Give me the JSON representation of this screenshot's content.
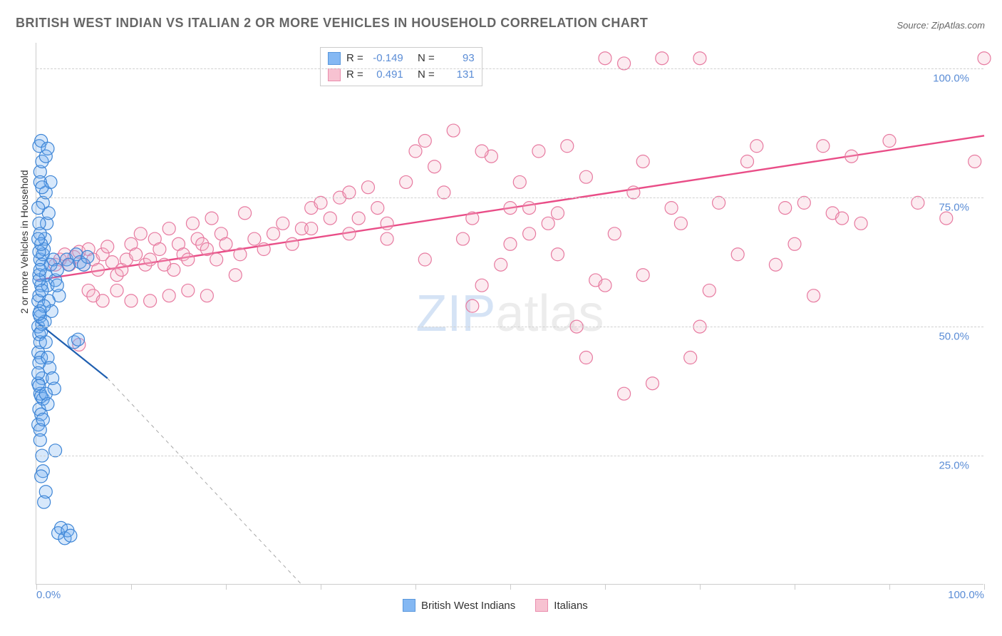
{
  "title": "BRITISH WEST INDIAN VS ITALIAN 2 OR MORE VEHICLES IN HOUSEHOLD CORRELATION CHART",
  "source": "Source: ZipAtlas.com",
  "watermark": {
    "part1": "ZIP",
    "part2": "atlas"
  },
  "y_axis_label": "2 or more Vehicles in Household",
  "chart": {
    "type": "scatter",
    "xlim": [
      0,
      100
    ],
    "ylim": [
      0,
      105
    ],
    "x_ticks": [
      0,
      10,
      20,
      30,
      40,
      50,
      60,
      70,
      80,
      90,
      100
    ],
    "x_tick_labels": {
      "0": "0.0%",
      "100": "100.0%"
    },
    "y_gridlines": [
      25,
      50,
      75,
      100
    ],
    "y_tick_labels": {
      "25": "25.0%",
      "50": "50.0%",
      "75": "75.0%",
      "100": "100.0%"
    },
    "background_color": "#ffffff",
    "grid_color": "#d0d0d0",
    "axis_color": "#cccccc",
    "tick_label_color": "#5b8dd6",
    "marker_radius": 9,
    "marker_stroke_width": 1.2,
    "fill_opacity": 0.28
  },
  "series": {
    "blue": {
      "label": "British West Indians",
      "fill": "#6facf1",
      "stroke": "#3d85d6",
      "r_value": "-0.149",
      "n_value": "93",
      "trend": {
        "x1": 0,
        "y1": 51,
        "x2": 7.5,
        "y2": 40,
        "color": "#1f5fb0",
        "width": 2.2
      },
      "trend_dashed": {
        "x1": 7.5,
        "y1": 40,
        "x2": 28,
        "y2": 0,
        "color": "#a8a8a8",
        "dash": "5,5",
        "width": 1
      },
      "points": [
        [
          0.2,
          50
        ],
        [
          0.3,
          48.5
        ],
        [
          0.4,
          52
        ],
        [
          0.2,
          55
        ],
        [
          0.5,
          58
        ],
        [
          0.3,
          60
        ],
        [
          0.6,
          62
        ],
        [
          0.4,
          63
        ],
        [
          0.7,
          64
        ],
        [
          0.3,
          56
        ],
        [
          0.8,
          65
        ],
        [
          0.2,
          45
        ],
        [
          0.4,
          47
        ],
        [
          0.5,
          44
        ],
        [
          0.3,
          43
        ],
        [
          0.6,
          40
        ],
        [
          0.2,
          39
        ],
        [
          0.4,
          37
        ],
        [
          0.7,
          36
        ],
        [
          0.3,
          34
        ],
        [
          0.5,
          33
        ],
        [
          0.2,
          31
        ],
        [
          0.4,
          30
        ],
        [
          1.0,
          60
        ],
        [
          1.2,
          58
        ],
        [
          1.5,
          62
        ],
        [
          1.8,
          63
        ],
        [
          2.0,
          59
        ],
        [
          2.2,
          61
        ],
        [
          2.4,
          56
        ],
        [
          1.3,
          55
        ],
        [
          1.6,
          53
        ],
        [
          1.0,
          47
        ],
        [
          1.2,
          44
        ],
        [
          1.4,
          42
        ],
        [
          1.7,
          40
        ],
        [
          1.9,
          38
        ],
        [
          2.2,
          58
        ],
        [
          0.9,
          67
        ],
        [
          1.1,
          70
        ],
        [
          1.3,
          72
        ],
        [
          0.7,
          74
        ],
        [
          1.0,
          76
        ],
        [
          1.5,
          78
        ],
        [
          0.4,
          80
        ],
        [
          0.6,
          82
        ],
        [
          1.0,
          83
        ],
        [
          0.3,
          85
        ],
        [
          0.5,
          86
        ],
        [
          1.2,
          84.5
        ],
        [
          3.2,
          63
        ],
        [
          3.4,
          62
        ],
        [
          4.2,
          64
        ],
        [
          4.6,
          62.5
        ],
        [
          5.0,
          62
        ],
        [
          5.4,
          63.5
        ],
        [
          4.0,
          47
        ],
        [
          4.4,
          47.5
        ],
        [
          0.4,
          28
        ],
        [
          0.7,
          22
        ],
        [
          0.5,
          21
        ],
        [
          1.0,
          18
        ],
        [
          0.8,
          16
        ],
        [
          0.6,
          25
        ],
        [
          2.0,
          26
        ],
        [
          2.3,
          10
        ],
        [
          2.6,
          11
        ],
        [
          3.0,
          9
        ],
        [
          3.3,
          10.5
        ],
        [
          3.6,
          9.5
        ],
        [
          0.3,
          70
        ],
        [
          0.2,
          73
        ],
        [
          0.4,
          68
        ],
        [
          0.3,
          59
        ],
        [
          0.9,
          51
        ],
        [
          0.4,
          53
        ],
        [
          0.6,
          50.5
        ],
        [
          0.2,
          41
        ],
        [
          0.3,
          38.5
        ],
        [
          0.5,
          36.5
        ],
        [
          1.0,
          37
        ],
        [
          1.2,
          35
        ],
        [
          0.7,
          32
        ],
        [
          0.4,
          78
        ],
        [
          0.6,
          77
        ],
        [
          0.3,
          64.5
        ],
        [
          0.5,
          66
        ],
        [
          0.2,
          67
        ],
        [
          0.4,
          61
        ],
        [
          0.6,
          57
        ],
        [
          0.8,
          54
        ],
        [
          0.3,
          52.5
        ],
        [
          0.5,
          49
        ]
      ]
    },
    "pink": {
      "label": "Italians",
      "fill": "#f6b8c9",
      "stroke": "#e77aa0",
      "r_value": "0.491",
      "n_value": "131",
      "trend": {
        "x1": 0,
        "y1": 59,
        "x2": 100,
        "y2": 87,
        "color": "#e94d87",
        "width": 2.4
      },
      "points": [
        [
          2,
          62
        ],
        [
          2.5,
          63
        ],
        [
          3,
          64
        ],
        [
          3.5,
          62
        ],
        [
          4,
          63.5
        ],
        [
          4.5,
          64.5
        ],
        [
          5,
          62
        ],
        [
          5.5,
          65
        ],
        [
          6,
          63
        ],
        [
          6.5,
          61
        ],
        [
          7,
          64
        ],
        [
          7.5,
          65.5
        ],
        [
          8,
          62.5
        ],
        [
          8.5,
          60
        ],
        [
          9,
          61
        ],
        [
          9.5,
          63
        ],
        [
          10,
          66
        ],
        [
          10.5,
          64
        ],
        [
          11,
          68
        ],
        [
          11.5,
          62
        ],
        [
          12,
          63
        ],
        [
          12.5,
          67
        ],
        [
          13,
          65
        ],
        [
          13.5,
          62
        ],
        [
          14,
          69
        ],
        [
          14.5,
          61
        ],
        [
          15,
          66
        ],
        [
          15.5,
          64
        ],
        [
          16,
          63
        ],
        [
          16.5,
          70
        ],
        [
          17,
          67
        ],
        [
          17.5,
          66
        ],
        [
          18,
          65
        ],
        [
          18.5,
          71
        ],
        [
          19,
          63
        ],
        [
          19.5,
          68
        ],
        [
          20,
          66
        ],
        [
          21,
          60
        ],
        [
          21.5,
          64
        ],
        [
          22,
          72
        ],
        [
          23,
          67
        ],
        [
          24,
          65
        ],
        [
          25,
          68
        ],
        [
          26,
          70
        ],
        [
          27,
          66
        ],
        [
          28,
          69
        ],
        [
          29,
          73
        ],
        [
          30,
          74
        ],
        [
          31,
          71
        ],
        [
          32,
          75
        ],
        [
          33,
          76
        ],
        [
          34,
          71
        ],
        [
          35,
          77
        ],
        [
          36,
          73
        ],
        [
          37,
          70
        ],
        [
          39,
          78
        ],
        [
          40,
          84
        ],
        [
          41,
          86
        ],
        [
          42,
          81
        ],
        [
          44,
          88
        ],
        [
          45,
          67
        ],
        [
          46,
          71
        ],
        [
          47,
          58
        ],
        [
          48,
          83
        ],
        [
          49,
          62
        ],
        [
          50,
          66
        ],
        [
          51,
          78
        ],
        [
          52,
          73
        ],
        [
          53,
          84
        ],
        [
          54,
          70
        ],
        [
          55,
          64
        ],
        [
          56,
          85
        ],
        [
          57,
          50
        ],
        [
          58,
          79
        ],
        [
          59,
          59
        ],
        [
          60,
          102
        ],
        [
          61,
          68
        ],
        [
          62,
          37
        ],
        [
          63,
          76
        ],
        [
          64,
          82
        ],
        [
          65,
          39
        ],
        [
          66,
          102
        ],
        [
          68,
          70
        ],
        [
          69,
          44
        ],
        [
          70,
          102
        ],
        [
          71,
          57
        ],
        [
          72,
          74
        ],
        [
          74,
          64
        ],
        [
          75,
          82
        ],
        [
          76,
          85
        ],
        [
          78,
          62
        ],
        [
          79,
          73
        ],
        [
          80,
          66
        ],
        [
          81,
          74
        ],
        [
          82,
          56
        ],
        [
          83,
          85
        ],
        [
          84,
          72
        ],
        [
          85,
          71
        ],
        [
          86,
          83
        ],
        [
          87,
          70
        ],
        [
          4.5,
          46.5
        ],
        [
          5.5,
          57
        ],
        [
          6.0,
          56
        ],
        [
          7.0,
          55
        ],
        [
          8.5,
          57
        ],
        [
          10,
          55
        ],
        [
          12,
          55
        ],
        [
          14,
          56
        ],
        [
          16,
          57
        ],
        [
          18,
          56
        ],
        [
          96,
          71
        ],
        [
          99,
          82
        ],
        [
          100,
          102
        ],
        [
          62,
          101
        ],
        [
          90,
          86
        ],
        [
          93,
          74
        ],
        [
          46,
          54
        ],
        [
          52,
          68
        ],
        [
          37,
          67
        ],
        [
          33,
          68
        ],
        [
          29,
          69
        ],
        [
          41,
          63
        ],
        [
          58,
          44
        ],
        [
          47,
          84
        ],
        [
          70,
          50
        ],
        [
          50,
          73
        ],
        [
          43,
          76
        ],
        [
          55,
          72
        ],
        [
          60,
          58
        ],
        [
          64,
          60
        ],
        [
          67,
          73
        ]
      ]
    }
  },
  "stats_box": {
    "r_label": "R =",
    "n_label": "N ="
  },
  "legend": {
    "series1_key": "blue",
    "series2_key": "pink"
  }
}
